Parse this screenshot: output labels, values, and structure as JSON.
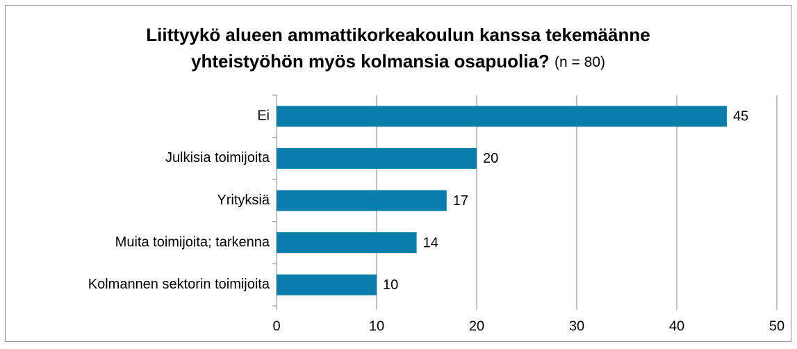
{
  "chart_data": {
    "type": "bar",
    "orientation": "horizontal",
    "title": [
      "Liittyykö alueen ammattikorkeakoulun kanssa tekemäänne",
      "yhteistyöhön myös kolmansia osapuolia?"
    ],
    "subtitle": "(n = 80)",
    "categories": [
      "Ei",
      "Julkisia toimijoita",
      "Yrityksiä",
      "Muita toimijoita; tarkenna",
      "Kolmannen sektorin toimijoita"
    ],
    "values": [
      45,
      20,
      17,
      14,
      10
    ],
    "color": "#0b7daa",
    "xlim": [
      0,
      50
    ],
    "xticks": [
      0,
      10,
      20,
      30,
      40,
      50
    ],
    "grid": true
  }
}
